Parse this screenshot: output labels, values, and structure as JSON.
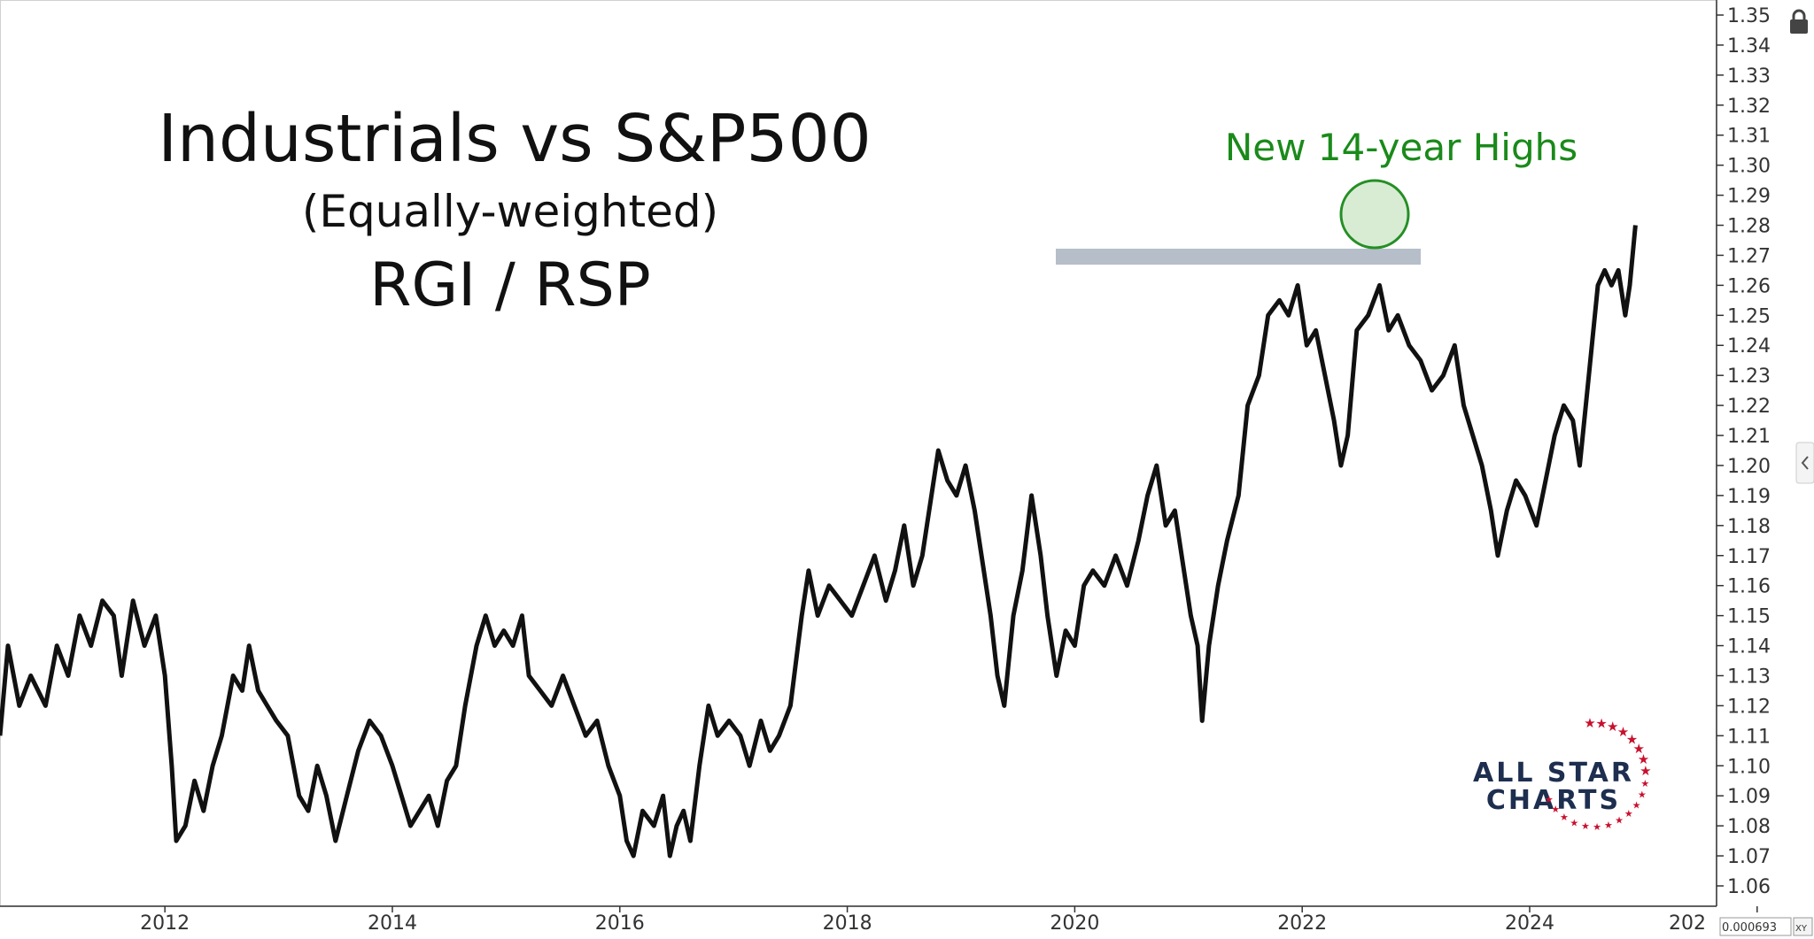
{
  "chart_data": {
    "type": "line",
    "title": "Industrials vs S&P500",
    "subtitle": "(Equally-weighted)",
    "ratio_label": "RGI / RSP",
    "annotation": "New 14-year Highs",
    "x_ticks": [
      "2012",
      "2014",
      "2016",
      "2018",
      "2020",
      "2022",
      "2024",
      "202"
    ],
    "y_ticks": [
      "1.35",
      "1.34",
      "1.33",
      "1.32",
      "1.31",
      "1.30",
      "1.29",
      "1.28",
      "1.27",
      "1.26",
      "1.25",
      "1.24",
      "1.23",
      "1.22",
      "1.21",
      "1.20",
      "1.19",
      "1.18",
      "1.17",
      "1.16",
      "1.15",
      "1.14",
      "1.13",
      "1.12",
      "1.11",
      "1.10",
      "1.09",
      "1.08",
      "1.07",
      "1.06"
    ],
    "ylim": [
      1.055,
      1.355
    ],
    "xlim": [
      2010.55,
      2026.5
    ],
    "resistance_level": 1.263,
    "grid": false,
    "line_color": "#111111",
    "annotation_color": "#1a8a1a",
    "resistance_color": "#a9b3c1",
    "series": [
      {
        "values": [
          [
            2010.55,
            1.11
          ],
          [
            2010.62,
            1.14
          ],
          [
            2010.72,
            1.12
          ],
          [
            2010.82,
            1.13
          ],
          [
            2010.95,
            1.12
          ],
          [
            2011.05,
            1.14
          ],
          [
            2011.15,
            1.13
          ],
          [
            2011.25,
            1.15
          ],
          [
            2011.35,
            1.14
          ],
          [
            2011.45,
            1.155
          ],
          [
            2011.55,
            1.15
          ],
          [
            2011.62,
            1.13
          ],
          [
            2011.72,
            1.155
          ],
          [
            2011.82,
            1.14
          ],
          [
            2011.92,
            1.15
          ],
          [
            2012.0,
            1.13
          ],
          [
            2012.06,
            1.1
          ],
          [
            2012.1,
            1.075
          ],
          [
            2012.18,
            1.08
          ],
          [
            2012.26,
            1.095
          ],
          [
            2012.34,
            1.085
          ],
          [
            2012.42,
            1.1
          ],
          [
            2012.5,
            1.11
          ],
          [
            2012.6,
            1.13
          ],
          [
            2012.68,
            1.125
          ],
          [
            2012.74,
            1.14
          ],
          [
            2012.82,
            1.125
          ],
          [
            2012.9,
            1.12
          ],
          [
            2012.98,
            1.115
          ],
          [
            2013.08,
            1.11
          ],
          [
            2013.18,
            1.09
          ],
          [
            2013.26,
            1.085
          ],
          [
            2013.34,
            1.1
          ],
          [
            2013.42,
            1.09
          ],
          [
            2013.5,
            1.075
          ],
          [
            2013.6,
            1.09
          ],
          [
            2013.7,
            1.105
          ],
          [
            2013.8,
            1.115
          ],
          [
            2013.9,
            1.11
          ],
          [
            2014.0,
            1.1
          ],
          [
            2014.08,
            1.09
          ],
          [
            2014.16,
            1.08
          ],
          [
            2014.24,
            1.085
          ],
          [
            2014.32,
            1.09
          ],
          [
            2014.4,
            1.08
          ],
          [
            2014.48,
            1.095
          ],
          [
            2014.56,
            1.1
          ],
          [
            2014.64,
            1.12
          ],
          [
            2014.74,
            1.14
          ],
          [
            2014.82,
            1.15
          ],
          [
            2014.9,
            1.14
          ],
          [
            2014.98,
            1.145
          ],
          [
            2015.06,
            1.14
          ],
          [
            2015.14,
            1.15
          ],
          [
            2015.2,
            1.13
          ],
          [
            2015.3,
            1.125
          ],
          [
            2015.4,
            1.12
          ],
          [
            2015.5,
            1.13
          ],
          [
            2015.6,
            1.12
          ],
          [
            2015.7,
            1.11
          ],
          [
            2015.8,
            1.115
          ],
          [
            2015.9,
            1.1
          ],
          [
            2016.0,
            1.09
          ],
          [
            2016.06,
            1.075
          ],
          [
            2016.12,
            1.07
          ],
          [
            2016.2,
            1.085
          ],
          [
            2016.3,
            1.08
          ],
          [
            2016.38,
            1.09
          ],
          [
            2016.44,
            1.07
          ],
          [
            2016.5,
            1.08
          ],
          [
            2016.56,
            1.085
          ],
          [
            2016.62,
            1.075
          ],
          [
            2016.7,
            1.1
          ],
          [
            2016.78,
            1.12
          ],
          [
            2016.86,
            1.11
          ],
          [
            2016.96,
            1.115
          ],
          [
            2017.06,
            1.11
          ],
          [
            2017.14,
            1.1
          ],
          [
            2017.24,
            1.115
          ],
          [
            2017.32,
            1.105
          ],
          [
            2017.4,
            1.11
          ],
          [
            2017.5,
            1.12
          ],
          [
            2017.6,
            1.15
          ],
          [
            2017.66,
            1.165
          ],
          [
            2017.74,
            1.15
          ],
          [
            2017.84,
            1.16
          ],
          [
            2017.94,
            1.155
          ],
          [
            2018.04,
            1.15
          ],
          [
            2018.14,
            1.16
          ],
          [
            2018.24,
            1.17
          ],
          [
            2018.34,
            1.155
          ],
          [
            2018.42,
            1.165
          ],
          [
            2018.5,
            1.18
          ],
          [
            2018.58,
            1.16
          ],
          [
            2018.66,
            1.17
          ],
          [
            2018.74,
            1.19
          ],
          [
            2018.8,
            1.205
          ],
          [
            2018.88,
            1.195
          ],
          [
            2018.96,
            1.19
          ],
          [
            2019.04,
            1.2
          ],
          [
            2019.12,
            1.185
          ],
          [
            2019.2,
            1.165
          ],
          [
            2019.26,
            1.15
          ],
          [
            2019.32,
            1.13
          ],
          [
            2019.38,
            1.12
          ],
          [
            2019.46,
            1.15
          ],
          [
            2019.54,
            1.165
          ],
          [
            2019.62,
            1.19
          ],
          [
            2019.7,
            1.17
          ],
          [
            2019.76,
            1.15
          ],
          [
            2019.84,
            1.13
          ],
          [
            2019.92,
            1.145
          ],
          [
            2020.0,
            1.14
          ],
          [
            2020.08,
            1.16
          ],
          [
            2020.16,
            1.165
          ],
          [
            2020.26,
            1.16
          ],
          [
            2020.36,
            1.17
          ],
          [
            2020.46,
            1.16
          ],
          [
            2020.56,
            1.175
          ],
          [
            2020.64,
            1.19
          ],
          [
            2020.72,
            1.2
          ],
          [
            2020.8,
            1.18
          ],
          [
            2020.88,
            1.185
          ],
          [
            2020.94,
            1.17
          ],
          [
            2021.02,
            1.15
          ],
          [
            2021.08,
            1.14
          ],
          [
            2021.12,
            1.115
          ],
          [
            2021.18,
            1.14
          ],
          [
            2021.26,
            1.16
          ],
          [
            2021.34,
            1.175
          ],
          [
            2021.44,
            1.19
          ],
          [
            2021.52,
            1.22
          ],
          [
            2021.62,
            1.23
          ],
          [
            2021.7,
            1.25
          ],
          [
            2021.8,
            1.255
          ],
          [
            2021.88,
            1.25
          ],
          [
            2021.96,
            1.26
          ],
          [
            2022.04,
            1.24
          ],
          [
            2022.12,
            1.245
          ],
          [
            2022.2,
            1.23
          ],
          [
            2022.28,
            1.215
          ],
          [
            2022.34,
            1.2
          ],
          [
            2022.4,
            1.21
          ],
          [
            2022.48,
            1.245
          ],
          [
            2022.58,
            1.25
          ],
          [
            2022.68,
            1.26
          ],
          [
            2022.76,
            1.245
          ],
          [
            2022.84,
            1.25
          ],
          [
            2022.94,
            1.24
          ],
          [
            2023.04,
            1.235
          ],
          [
            2023.14,
            1.225
          ],
          [
            2023.24,
            1.23
          ],
          [
            2023.34,
            1.24
          ],
          [
            2023.42,
            1.22
          ],
          [
            2023.5,
            1.21
          ],
          [
            2023.58,
            1.2
          ],
          [
            2023.66,
            1.185
          ],
          [
            2023.72,
            1.17
          ],
          [
            2023.8,
            1.185
          ],
          [
            2023.88,
            1.195
          ],
          [
            2023.96,
            1.19
          ],
          [
            2024.06,
            1.18
          ],
          [
            2024.14,
            1.195
          ],
          [
            2024.22,
            1.21
          ],
          [
            2024.3,
            1.22
          ],
          [
            2024.38,
            1.215
          ],
          [
            2024.44,
            1.2
          ],
          [
            2024.52,
            1.23
          ],
          [
            2024.6,
            1.26
          ],
          [
            2024.66,
            1.265
          ],
          [
            2024.72,
            1.26
          ],
          [
            2024.78,
            1.265
          ],
          [
            2024.84,
            1.25
          ],
          [
            2024.88,
            1.26
          ],
          [
            2024.93,
            1.28
          ]
        ]
      }
    ]
  },
  "logo": {
    "line1": "ALL STAR",
    "line2": "CHARTS",
    "star_color": "#c8102e"
  },
  "readout": {
    "value": "0.000693",
    "xy_label": "XY"
  },
  "icons": {
    "lock": "lock-icon",
    "collapse": "chevron-left-icon"
  }
}
